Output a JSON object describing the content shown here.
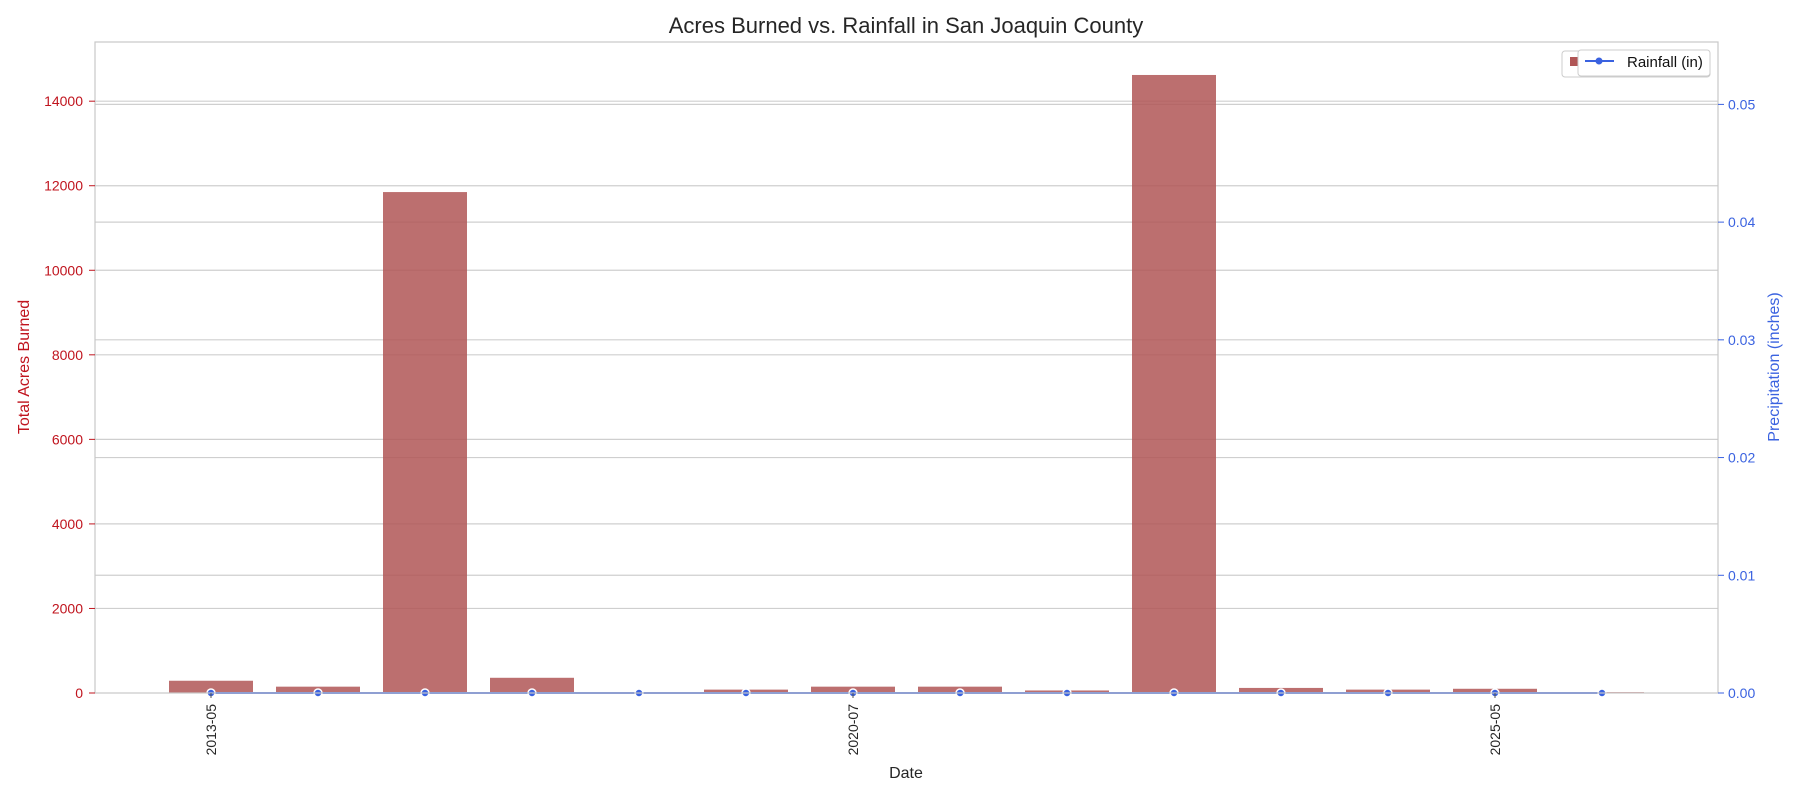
{
  "chart_data": {
    "type": "bar",
    "title": "Acres Burned vs. Rainfall in San Joaquin County",
    "xlabel": "Date",
    "ylabel_left": "Total Acres Burned",
    "ylabel_right": "Precipitation (inches)",
    "x_tick_labels": [
      {
        "index": 0,
        "label": "2013-05"
      },
      {
        "index": 6,
        "label": "2020-07"
      },
      {
        "index": 12,
        "label": "2025-05"
      }
    ],
    "categories": [
      "2013-05",
      "",
      "",
      "",
      "",
      "",
      "2020-07",
      "",
      "",
      "",
      "",
      "",
      "2025-05",
      ""
    ],
    "ylim_left": [
      0,
      15400
    ],
    "yticks_left": [
      0,
      2000,
      4000,
      6000,
      8000,
      10000,
      12000,
      14000
    ],
    "ylim_right": [
      0,
      0.0553
    ],
    "yticks_right": [
      0.0,
      0.01,
      0.02,
      0.03,
      0.04,
      0.05
    ],
    "yticks_right_labels": [
      "0.00",
      "0.01",
      "0.02",
      "0.03",
      "0.04",
      "0.05"
    ],
    "grid": true,
    "legend_position": "top-right",
    "series": [
      {
        "kind": "bar",
        "axis": "left",
        "values": [
          290,
          150,
          11850,
          360,
          20,
          80,
          150,
          150,
          60,
          14620,
          120,
          80,
          100,
          20
        ],
        "color": "#b05656"
      },
      {
        "kind": "line",
        "axis": "right",
        "name": "Rainfall (in)",
        "values": [
          0,
          0,
          0,
          0,
          0,
          0,
          0,
          0,
          0,
          0,
          0,
          0,
          0,
          0
        ],
        "color": "#3a62e0"
      }
    ]
  }
}
